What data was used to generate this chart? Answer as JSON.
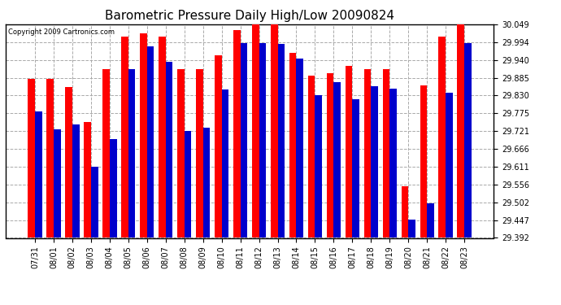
{
  "title": "Barometric Pressure Daily High/Low 20090824",
  "copyright": "Copyright 2009 Cartronics.com",
  "dates": [
    "07/31",
    "08/01",
    "08/02",
    "08/03",
    "08/04",
    "08/05",
    "08/06",
    "08/07",
    "08/08",
    "08/09",
    "08/10",
    "08/11",
    "08/12",
    "08/13",
    "08/14",
    "08/15",
    "08/16",
    "08/17",
    "08/18",
    "08/19",
    "08/20",
    "08/21",
    "08/22",
    "08/23"
  ],
  "highs": [
    29.882,
    29.882,
    29.856,
    29.748,
    29.912,
    30.012,
    30.022,
    30.012,
    29.912,
    29.912,
    29.955,
    30.032,
    30.052,
    30.052,
    29.962,
    29.892,
    29.898,
    29.922,
    29.912,
    29.912,
    29.552,
    29.862,
    30.012,
    30.052
  ],
  "lows": [
    29.782,
    29.725,
    29.74,
    29.612,
    29.695,
    29.912,
    29.982,
    29.935,
    29.72,
    29.73,
    29.848,
    29.992,
    29.992,
    29.988,
    29.945,
    29.832,
    29.872,
    29.818,
    29.858,
    29.852,
    29.448,
    29.498,
    29.838,
    29.992
  ],
  "ylim_min": 29.392,
  "ylim_max": 30.049,
  "yticks": [
    29.392,
    29.447,
    29.502,
    29.556,
    29.611,
    29.666,
    29.721,
    29.775,
    29.83,
    29.885,
    29.94,
    29.994,
    30.049
  ],
  "bar_width": 0.38,
  "high_color": "#ff0000",
  "low_color": "#0000cc",
  "bg_color": "#ffffff",
  "grid_color": "#aaaaaa",
  "title_fontsize": 11,
  "tick_fontsize": 7,
  "xlabel_rotation": 90
}
